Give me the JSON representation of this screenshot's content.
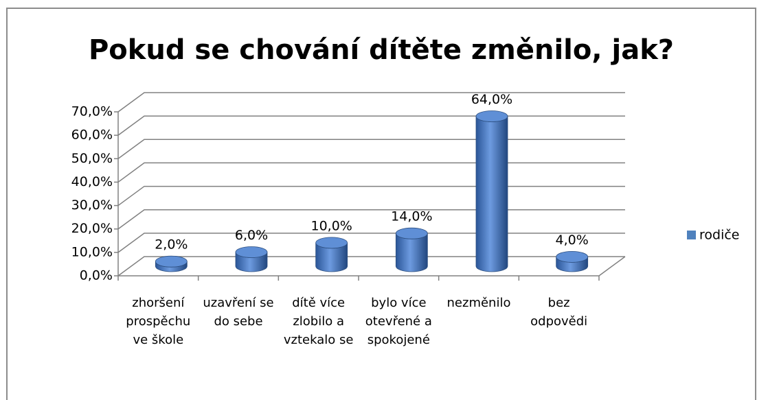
{
  "chart_data": {
    "type": "bar3d",
    "title": "Pokud se chování dítěte změnilo, jak?",
    "categories": [
      "zhoršení prospěchu ve škole",
      "uzavření se do sebe",
      "dítě více zlobilo a vztekalo se",
      "bylo více otevřené a spokojené",
      "nezměnilo",
      "bez odpovědi"
    ],
    "series": [
      {
        "name": "rodiče",
        "color": "#4f81bd",
        "values": [
          2,
          6,
          10,
          14,
          64,
          4
        ],
        "value_labels": [
          "2,0%",
          "6,0%",
          "10,0%",
          "14,0%",
          "64,0%",
          "4,0%"
        ]
      }
    ],
    "ylim": [
      0,
      70
    ],
    "yticks": [
      {
        "value": 0,
        "label": "0,0%"
      },
      {
        "value": 10,
        "label": "10,0%"
      },
      {
        "value": 20,
        "label": "20,0%"
      },
      {
        "value": 30,
        "label": "30,0%"
      },
      {
        "value": 40,
        "label": "40,0%"
      },
      {
        "value": 50,
        "label": "50,0%"
      },
      {
        "value": 60,
        "label": "60,0%"
      },
      {
        "value": 70,
        "label": "70,0%"
      }
    ],
    "grid": true,
    "legend": "right"
  }
}
